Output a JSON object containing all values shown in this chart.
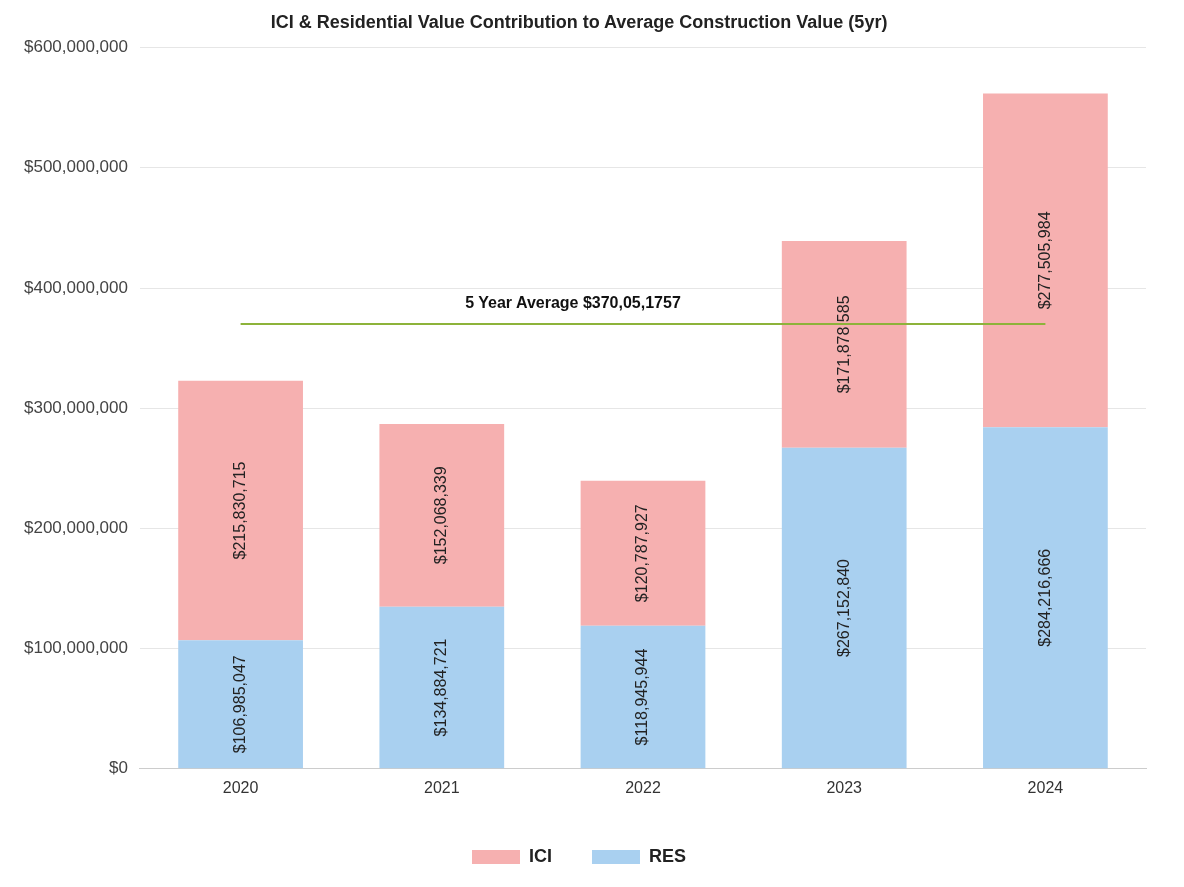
{
  "chart_data": {
    "type": "bar",
    "title": "ICI & Residential Value Contribution to Average Construction Value (5yr)",
    "categories": [
      "2020",
      "2021",
      "2022",
      "2023",
      "2024"
    ],
    "stacked": true,
    "series": [
      {
        "name": "RES",
        "color": "#a9d0f0",
        "values": [
          106985047,
          134884721,
          118945944,
          267152840,
          284216666
        ],
        "value_labels": [
          "$106,985,047",
          "$134,884,721",
          "$118,945,944",
          "$267,152,840",
          "$284,216,666"
        ]
      },
      {
        "name": "ICI",
        "color": "#f6b0b0",
        "values": [
          215830715,
          152068339,
          120787927,
          171878585,
          277505984
        ],
        "value_labels": [
          "$215,830,715",
          "$152,068,339",
          "$120,787,927",
          "$171,878,585",
          "$277,505,984"
        ]
      }
    ],
    "ylim": [
      0,
      600000000
    ],
    "yticks": [
      {
        "value": 0,
        "label": "$0"
      },
      {
        "value": 100000000,
        "label": "$100,000,000"
      },
      {
        "value": 200000000,
        "label": "$200,000,000"
      },
      {
        "value": 300000000,
        "label": "$300,000,000"
      },
      {
        "value": 400000000,
        "label": "$400,000,000"
      },
      {
        "value": 500000000,
        "label": "$500,000,000"
      },
      {
        "value": 600000000,
        "label": "$600,000,000"
      }
    ],
    "grid": "y",
    "legend": "bottom",
    "ref_lines": [
      {
        "axis": "y",
        "value": 370051757,
        "label": "5 Year Average $370,05,1757",
        "color": "#8db33a"
      }
    ]
  }
}
